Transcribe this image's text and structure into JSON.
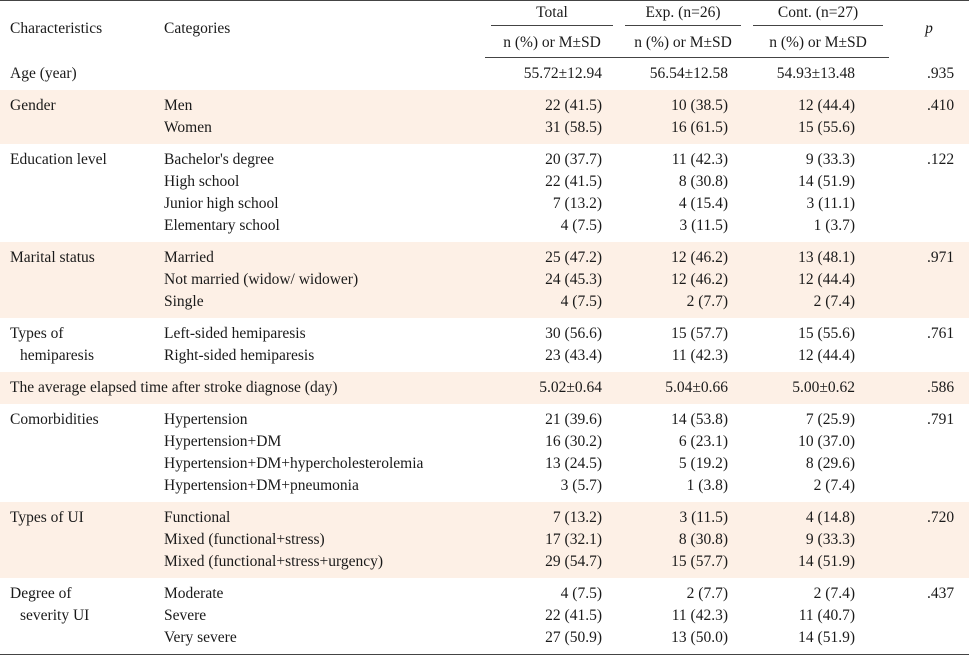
{
  "header": {
    "characteristics": "Characteristics",
    "categories": "Categories",
    "total": "Total",
    "exp": "Exp. (n=26)",
    "cont": "Cont. (n=27)",
    "sub": "n (%) or M±SD",
    "p": "p"
  },
  "rows": [
    {
      "label": "Age (year)",
      "categories": [],
      "total": [
        "55.72±12.94"
      ],
      "exp": [
        "56.54±12.58"
      ],
      "cont": [
        "54.93±13.48"
      ],
      "p": ".935",
      "shade": false
    },
    {
      "label": "Gender",
      "categories": [
        "Men",
        "Women"
      ],
      "total": [
        "22 (41.5)",
        "31 (58.5)"
      ],
      "exp": [
        "10 (38.5)",
        "16 (61.5)"
      ],
      "cont": [
        "12 (44.4)",
        "15 (55.6)"
      ],
      "p": ".410",
      "shade": true
    },
    {
      "label": "Education level",
      "categories": [
        "Bachelor's degree",
        "High school",
        "Junior high school",
        "Elementary school"
      ],
      "total": [
        "20 (37.7)",
        "22 (41.5)",
        "7 (13.2)",
        "4 (7.5)"
      ],
      "exp": [
        "11 (42.3)",
        "8 (30.8)",
        "4 (15.4)",
        "3 (11.5)"
      ],
      "cont": [
        "9 (33.3)",
        "14 (51.9)",
        "3 (11.1)",
        "1 (3.7)"
      ],
      "p": ".122",
      "shade": false
    },
    {
      "label": "Marital status",
      "categories": [
        "Married",
        "Not married (widow/ widower)",
        "Single"
      ],
      "total": [
        "25 (47.2)",
        "24 (45.3)",
        "4 (7.5)"
      ],
      "exp": [
        "12 (46.2)",
        "12 (46.2)",
        "2 (7.7)"
      ],
      "cont": [
        "13 (48.1)",
        "12 (44.4)",
        "2 (7.4)"
      ],
      "p": ".971",
      "shade": true
    },
    {
      "label": "Types of",
      "label2": "hemiparesis",
      "categories": [
        "Left-sided hemiparesis",
        "Right-sided hemiparesis"
      ],
      "total": [
        "30 (56.6)",
        "23 (43.4)"
      ],
      "exp": [
        "15 (57.7)",
        "11 (42.3)"
      ],
      "cont": [
        "15 (55.6)",
        "12 (44.4)"
      ],
      "p": ".761",
      "shade": false
    },
    {
      "label": "The average elapsed time after stroke diagnose (day)",
      "categories": [],
      "total": [
        "5.02±0.64"
      ],
      "exp": [
        "5.04±0.66"
      ],
      "cont": [
        "5.00±0.62"
      ],
      "p": ".586",
      "shade": true,
      "wide": true
    },
    {
      "label": "Comorbidities",
      "categories": [
        "Hypertension",
        "Hypertension+DM",
        "Hypertension+DM+hypercholesterolemia",
        "Hypertension+DM+pneumonia"
      ],
      "total": [
        "21 (39.6)",
        "16 (30.2)",
        "13 (24.5)",
        "3 (5.7)"
      ],
      "exp": [
        "14 (53.8)",
        "6 (23.1)",
        "5 (19.2)",
        "1 (3.8)"
      ],
      "cont": [
        "7 (25.9)",
        "10 (37.0)",
        "8 (29.6)",
        "2 (7.4)"
      ],
      "p": ".791",
      "shade": false
    },
    {
      "label": "Types of UI",
      "categories": [
        "Functional",
        "Mixed (functional+stress)",
        "Mixed (functional+stress+urgency)"
      ],
      "total": [
        "7 (13.2)",
        "17 (32.1)",
        "29 (54.7)"
      ],
      "exp": [
        "3 (11.5)",
        "8 (30.8)",
        "15 (57.7)"
      ],
      "cont": [
        "4 (14.8)",
        "9 (33.3)",
        "14 (51.9)"
      ],
      "p": ".720",
      "shade": true
    },
    {
      "label": "Degree of",
      "label2": "severity UI",
      "categories": [
        "Moderate",
        "Severe",
        "Very severe"
      ],
      "total": [
        "4 (7.5)",
        "22 (41.5)",
        "27 (50.9)"
      ],
      "exp": [
        "2 (7.7)",
        "11 (42.3)",
        "13 (50.0)"
      ],
      "cont": [
        "2 (7.4)",
        "11 (40.7)",
        "14 (51.9)"
      ],
      "p": ".437",
      "shade": false
    }
  ]
}
